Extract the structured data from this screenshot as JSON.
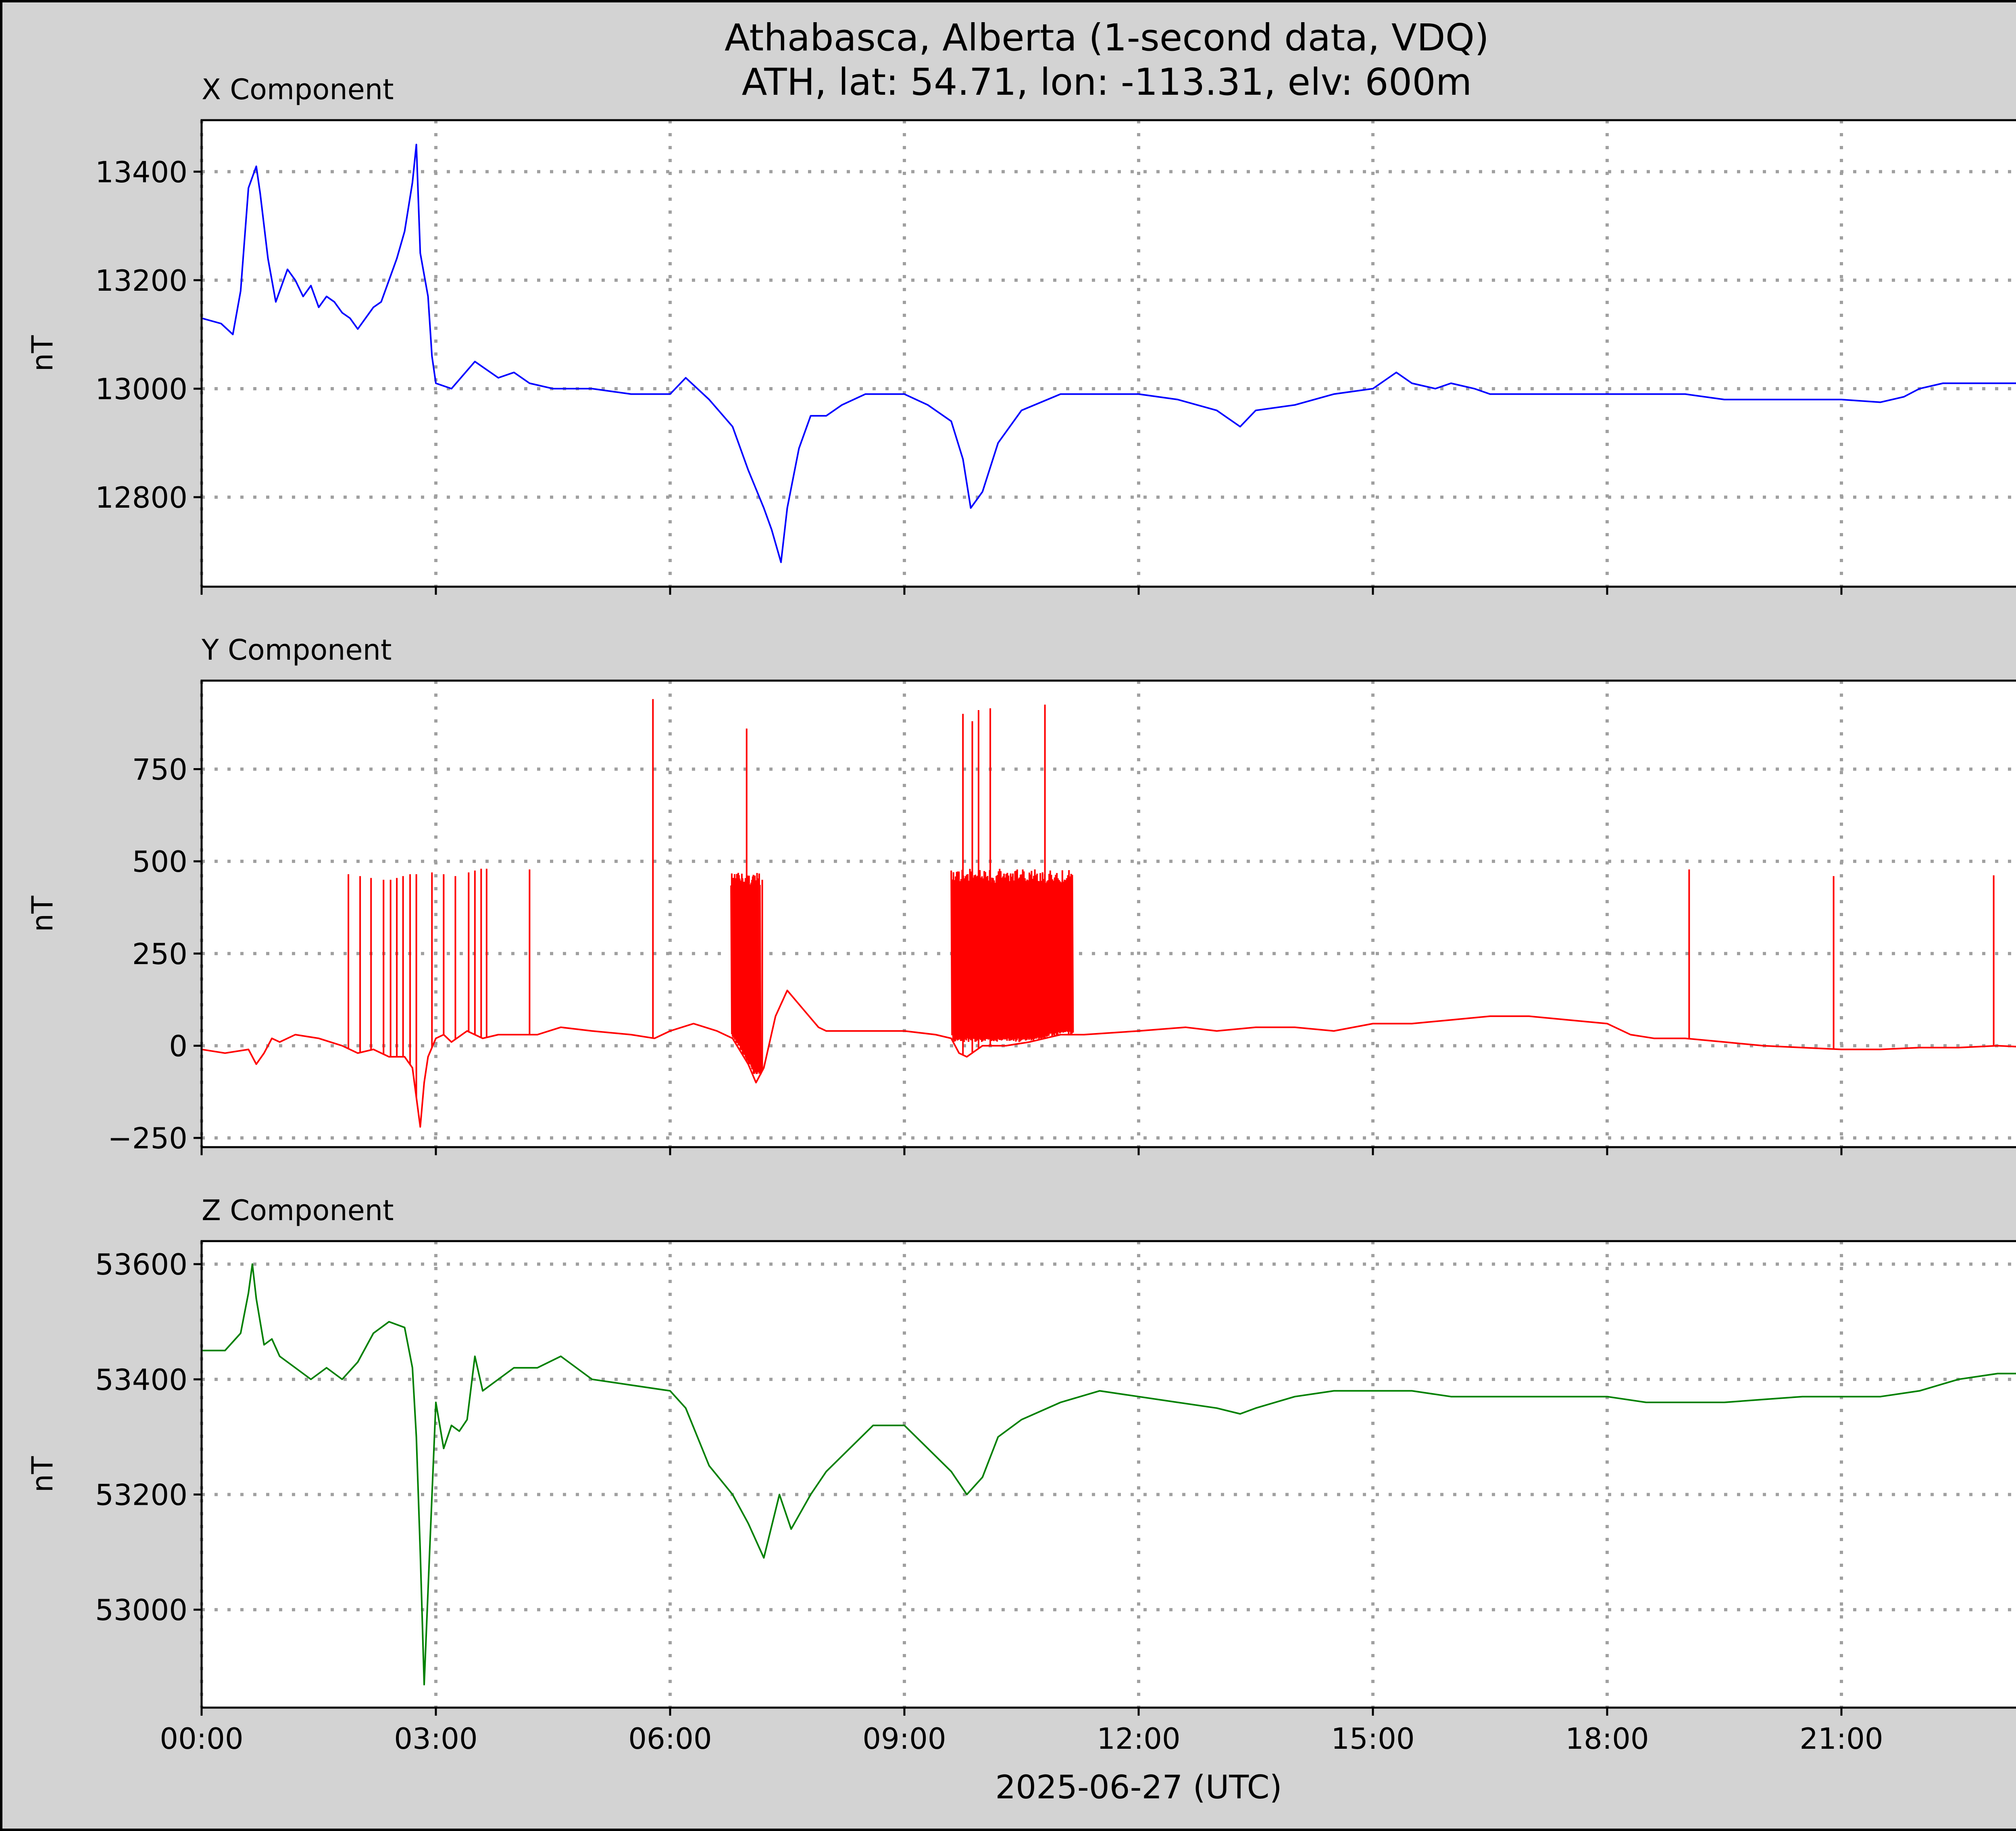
{
  "figure": {
    "title_line1": "Athabasca, Alberta (1-second data, VDQ)",
    "title_line2": "ATH, lat: 54.71, lon: -113.31, elv: 600m",
    "background": "#d3d3d3",
    "grid_color": "#a0a0a0"
  },
  "chart_data": [
    {
      "type": "line",
      "panel_title": "X Component",
      "ylabel": "nT",
      "xlabel": "",
      "xlim": [
        0,
        24
      ],
      "ylim": [
        12635,
        13495
      ],
      "x_ticks": [
        0,
        3,
        6,
        9,
        12,
        15,
        18,
        21
      ],
      "x_tick_labels": [],
      "y_ticks": [
        12800,
        13000,
        13200,
        13400
      ],
      "y_tick_labels": [
        "12800",
        "13000",
        "13200",
        "13400"
      ],
      "grid": true,
      "color": "#0000ff",
      "series": [
        {
          "x": [
            0,
            0.25,
            0.4,
            0.5,
            0.6,
            0.7,
            0.75,
            0.85,
            0.95,
            1.0,
            1.1,
            1.2,
            1.3,
            1.4,
            1.5,
            1.6,
            1.7,
            1.8,
            1.9,
            2.0,
            2.1,
            2.2,
            2.3,
            2.4,
            2.5,
            2.6,
            2.7,
            2.75,
            2.8,
            2.9,
            2.95,
            3.0,
            3.2,
            3.5,
            3.8,
            4.0,
            4.2,
            4.5,
            5.0,
            5.5,
            6.0,
            6.2,
            6.5,
            6.8,
            7.0,
            7.2,
            7.3,
            7.42,
            7.5,
            7.65,
            7.8,
            8.0,
            8.2,
            8.5,
            9.0,
            9.3,
            9.6,
            9.75,
            9.85,
            10.0,
            10.2,
            10.5,
            11.0,
            11.5,
            12.0,
            12.5,
            13.0,
            13.3,
            13.5,
            14.0,
            14.5,
            15.0,
            15.3,
            15.5,
            15.8,
            16.0,
            16.3,
            16.5,
            16.8,
            17.0,
            17.5,
            18.0,
            18.5,
            19.0,
            19.5,
            20.0,
            20.5,
            21.0,
            21.5,
            21.8,
            22.0,
            22.3,
            22.5,
            23.0,
            23.5,
            24.0
          ],
          "y": [
            13130,
            13120,
            13100,
            13180,
            13370,
            13410,
            13360,
            13240,
            13160,
            13180,
            13220,
            13200,
            13170,
            13190,
            13150,
            13170,
            13160,
            13140,
            13130,
            13110,
            13130,
            13150,
            13160,
            13200,
            13240,
            13290,
            13380,
            13450,
            13250,
            13170,
            13060,
            13010,
            13000,
            13050,
            13020,
            13030,
            13010,
            13000,
            13000,
            12990,
            12990,
            13020,
            12980,
            12930,
            12850,
            12780,
            12740,
            12680,
            12780,
            12890,
            12950,
            12950,
            12970,
            12990,
            12990,
            12970,
            12940,
            12870,
            12780,
            12810,
            12900,
            12960,
            12990,
            12990,
            12990,
            12980,
            12960,
            12930,
            12960,
            12970,
            12990,
            13000,
            13030,
            13010,
            13000,
            13010,
            13000,
            12990,
            12990,
            12990,
            12990,
            12990,
            12990,
            12990,
            12980,
            12980,
            12980,
            12980,
            12975,
            12985,
            13000,
            13010,
            13010,
            13010,
            13010,
            13000
          ]
        }
      ]
    },
    {
      "type": "line",
      "panel_title": "Y Component",
      "ylabel": "nT",
      "xlabel": "",
      "xlim": [
        0,
        24
      ],
      "ylim": [
        -275,
        990
      ],
      "x_ticks": [
        0,
        3,
        6,
        9,
        12,
        15,
        18,
        21
      ],
      "x_tick_labels": [],
      "y_ticks": [
        -250,
        0,
        250,
        500,
        750
      ],
      "y_tick_labels": [
        "−250",
        "0",
        "250",
        "500",
        "750"
      ],
      "grid": true,
      "color": "#ff0000",
      "series": [
        {
          "x": [
            0,
            0.3,
            0.6,
            0.7,
            0.8,
            0.9,
            1.0,
            1.2,
            1.5,
            1.8,
            2.0,
            2.2,
            2.4,
            2.6,
            2.7,
            2.8,
            2.85,
            2.9,
            3.0,
            3.1,
            3.2,
            3.4,
            3.6,
            3.8,
            4.0,
            4.3,
            4.6,
            5.0,
            5.5,
            5.8,
            6.0,
            6.3,
            6.6,
            6.8,
            7.0,
            7.1,
            7.2,
            7.35,
            7.5,
            7.7,
            7.9,
            8.0,
            8.3,
            8.6,
            9.0,
            9.4,
            9.6,
            9.7,
            9.8,
            10.0,
            10.3,
            10.6,
            11.0,
            11.3,
            12.0,
            12.6,
            13.0,
            13.5,
            14.0,
            14.5,
            15.0,
            15.5,
            16.0,
            16.5,
            17.0,
            17.5,
            18.0,
            18.3,
            18.6,
            19.0,
            19.5,
            20.0,
            20.5,
            21.0,
            21.5,
            22.0,
            22.5,
            23.0,
            23.5,
            24.0
          ],
          "y": [
            -10,
            -20,
            -10,
            -50,
            -20,
            20,
            10,
            30,
            20,
            0,
            -20,
            -10,
            -30,
            -30,
            -60,
            -220,
            -100,
            -30,
            20,
            30,
            10,
            40,
            20,
            30,
            30,
            30,
            50,
            40,
            30,
            20,
            40,
            60,
            40,
            20,
            -50,
            -100,
            -60,
            80,
            150,
            100,
            50,
            40,
            40,
            40,
            40,
            30,
            20,
            -20,
            -30,
            0,
            0,
            10,
            30,
            30,
            40,
            50,
            40,
            50,
            50,
            40,
            60,
            60,
            70,
            80,
            80,
            70,
            60,
            30,
            20,
            20,
            10,
            0,
            -5,
            -10,
            -10,
            -5,
            -5,
            0,
            -5,
            0
          ]
        }
      ],
      "spikes": [
        {
          "x": 1.88,
          "y": 465
        },
        {
          "x": 2.03,
          "y": 460
        },
        {
          "x": 2.17,
          "y": 455
        },
        {
          "x": 2.33,
          "y": 450
        },
        {
          "x": 2.42,
          "y": 450
        },
        {
          "x": 2.5,
          "y": 455
        },
        {
          "x": 2.58,
          "y": 460
        },
        {
          "x": 2.67,
          "y": 465
        },
        {
          "x": 2.75,
          "y": 465
        },
        {
          "x": 2.95,
          "y": 470
        },
        {
          "x": 3.1,
          "y": 465
        },
        {
          "x": 3.25,
          "y": 460
        },
        {
          "x": 3.42,
          "y": 470
        },
        {
          "x": 3.5,
          "y": 475
        },
        {
          "x": 3.58,
          "y": 480
        },
        {
          "x": 3.65,
          "y": 480
        },
        {
          "x": 4.2,
          "y": 478
        },
        {
          "x": 5.78,
          "y": 940
        },
        {
          "x": 6.98,
          "y": 860
        },
        {
          "x": 7.18,
          "y": 450
        },
        {
          "x": 9.75,
          "y": 900
        },
        {
          "x": 9.87,
          "y": 880
        },
        {
          "x": 9.95,
          "y": 910
        },
        {
          "x": 10.1,
          "y": 915
        },
        {
          "x": 10.8,
          "y": 925
        },
        {
          "x": 19.05,
          "y": 478
        },
        {
          "x": 20.9,
          "y": 460
        },
        {
          "x": 22.95,
          "y": 462
        }
      ],
      "bursts": [
        {
          "x0": 6.78,
          "x1": 7.15,
          "count": 40,
          "low": -80,
          "high": 470
        },
        {
          "x0": 9.6,
          "x1": 11.15,
          "count": 110,
          "low": 10,
          "high": 480
        }
      ]
    },
    {
      "type": "line",
      "panel_title": "Z Component",
      "ylabel": "nT",
      "xlabel": "2025-06-27 (UTC)",
      "xlim": [
        0,
        24
      ],
      "ylim": [
        52830,
        53640
      ],
      "x_ticks": [
        0,
        3,
        6,
        9,
        12,
        15,
        18,
        21
      ],
      "x_tick_labels": [
        "00:00",
        "03:00",
        "06:00",
        "09:00",
        "12:00",
        "15:00",
        "18:00",
        "21:00"
      ],
      "y_ticks": [
        53000,
        53200,
        53400,
        53600
      ],
      "y_tick_labels": [
        "53000",
        "53200",
        "53400",
        "53600"
      ],
      "grid": true,
      "color": "#008000",
      "series": [
        {
          "x": [
            0,
            0.3,
            0.5,
            0.6,
            0.65,
            0.7,
            0.8,
            0.9,
            1.0,
            1.2,
            1.4,
            1.6,
            1.8,
            2.0,
            2.2,
            2.4,
            2.6,
            2.7,
            2.75,
            2.8,
            2.85,
            2.92,
            3.0,
            3.1,
            3.2,
            3.3,
            3.4,
            3.5,
            3.6,
            3.8,
            4.0,
            4.3,
            4.6,
            5.0,
            5.5,
            6.0,
            6.2,
            6.5,
            6.8,
            7.0,
            7.2,
            7.4,
            7.55,
            7.8,
            8.0,
            8.3,
            8.6,
            9.0,
            9.3,
            9.6,
            9.8,
            10.0,
            10.2,
            10.5,
            11.0,
            11.5,
            12.0,
            12.5,
            13.0,
            13.3,
            13.5,
            14.0,
            14.5,
            15.0,
            15.5,
            16.0,
            16.5,
            17.0,
            17.5,
            18.0,
            18.5,
            19.0,
            19.5,
            20.0,
            20.5,
            21.0,
            21.5,
            22.0,
            22.5,
            23.0,
            23.5,
            24.0
          ],
          "y": [
            53450,
            53450,
            53480,
            53550,
            53600,
            53540,
            53460,
            53470,
            53440,
            53420,
            53400,
            53420,
            53400,
            53430,
            53480,
            53500,
            53490,
            53420,
            53300,
            53100,
            52870,
            53100,
            53360,
            53280,
            53320,
            53310,
            53330,
            53440,
            53380,
            53400,
            53420,
            53420,
            53440,
            53400,
            53390,
            53380,
            53350,
            53250,
            53200,
            53150,
            53090,
            53200,
            53140,
            53200,
            53240,
            53280,
            53320,
            53320,
            53280,
            53240,
            53200,
            53230,
            53300,
            53330,
            53360,
            53380,
            53370,
            53360,
            53350,
            53340,
            53350,
            53370,
            53380,
            53380,
            53380,
            53370,
            53370,
            53370,
            53370,
            53370,
            53360,
            53360,
            53360,
            53365,
            53370,
            53370,
            53370,
            53380,
            53400,
            53410,
            53410,
            53420
          ]
        }
      ]
    }
  ]
}
